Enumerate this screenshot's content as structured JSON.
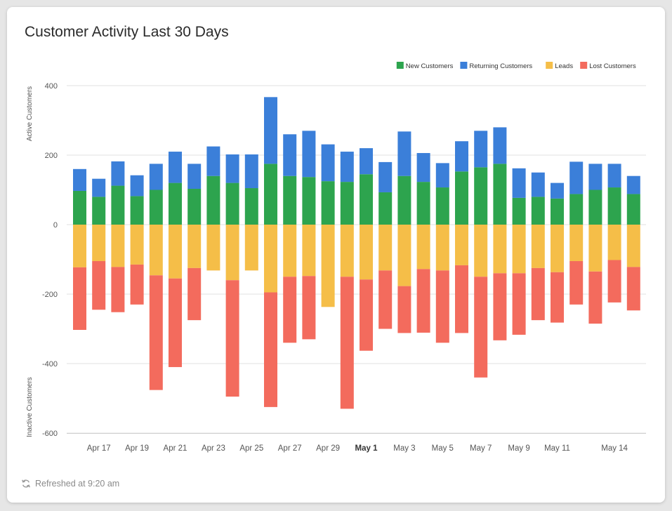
{
  "widget": {
    "title": "Customer Activity Last 30 Days",
    "refreshed": "Refreshed at 9:20 am"
  },
  "chart_data": {
    "type": "bar",
    "stacked": true,
    "title": "Customer Activity Last 30 Days",
    "ylabel_top": "Active Customers",
    "ylabel_bottom": "Inactive Customers",
    "ylim": [
      -600,
      400
    ],
    "yticks": [
      400,
      200,
      0,
      -200,
      -400,
      -600
    ],
    "grid": true,
    "legend_position": "top-right",
    "x_tick_labels": [
      {
        "index": 1,
        "label": "Apr 17",
        "bold": false
      },
      {
        "index": 3,
        "label": "Apr 19",
        "bold": false
      },
      {
        "index": 5,
        "label": "Apr 21",
        "bold": false
      },
      {
        "index": 7,
        "label": "Apr 23",
        "bold": false
      },
      {
        "index": 9,
        "label": "Apr 25",
        "bold": false
      },
      {
        "index": 11,
        "label": "Apr 27",
        "bold": false
      },
      {
        "index": 13,
        "label": "Apr 29",
        "bold": false
      },
      {
        "index": 15,
        "label": "May 1",
        "bold": true
      },
      {
        "index": 17,
        "label": "May 3",
        "bold": false
      },
      {
        "index": 19,
        "label": "May 5",
        "bold": false
      },
      {
        "index": 21,
        "label": "May 7",
        "bold": false
      },
      {
        "index": 23,
        "label": "May 9",
        "bold": false
      },
      {
        "index": 25,
        "label": "May 11",
        "bold": false
      },
      {
        "index": 28,
        "label": "May 14",
        "bold": false
      }
    ],
    "series": [
      {
        "name": "New Customers",
        "color": "#2da44e",
        "stack": "active",
        "values": [
          97,
          80,
          112,
          82,
          100,
          120,
          103,
          140,
          120,
          105,
          175,
          140,
          137,
          125,
          123,
          145,
          93,
          140,
          123,
          107,
          153,
          165,
          175,
          77,
          80,
          75,
          88,
          100,
          107,
          88
        ]
      },
      {
        "name": "Returning Customers",
        "color": "#3b7fd9",
        "stack": "active",
        "values": [
          63,
          52,
          70,
          60,
          75,
          90,
          72,
          85,
          82,
          97,
          192,
          120,
          133,
          106,
          87,
          75,
          87,
          128,
          83,
          70,
          87,
          105,
          105,
          85,
          70,
          45,
          93,
          75,
          68,
          52
        ]
      },
      {
        "name": "Leads",
        "color": "#f5be48",
        "stack": "inactive",
        "values": [
          -123,
          -105,
          -122,
          -115,
          -146,
          -155,
          -125,
          -132,
          -160,
          -132,
          -195,
          -150,
          -148,
          -237,
          -150,
          -158,
          -132,
          -177,
          -128,
          -132,
          -117,
          -150,
          -140,
          -140,
          -125,
          -137,
          -105,
          -135,
          -102,
          -122
        ]
      },
      {
        "name": "Lost Customers",
        "color": "#f36b5d",
        "stack": "inactive",
        "values": [
          -180,
          -140,
          -130,
          -115,
          -330,
          -255,
          -150,
          0,
          -335,
          0,
          -330,
          -190,
          -182,
          0,
          -380,
          -205,
          -168,
          -135,
          -183,
          -208,
          -195,
          -290,
          -193,
          -177,
          -150,
          -145,
          -125,
          -150,
          -122,
          -125
        ]
      }
    ]
  }
}
